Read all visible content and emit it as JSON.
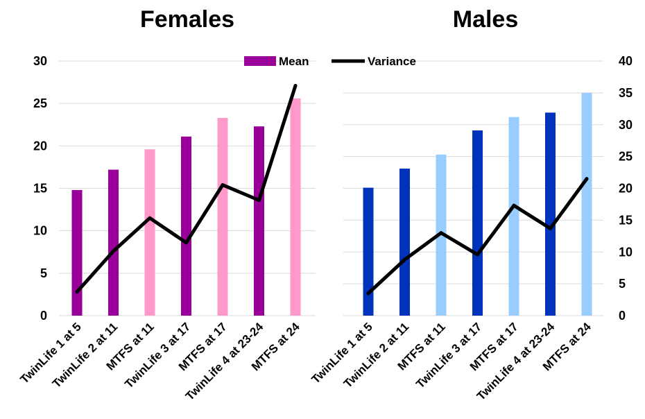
{
  "chart_data": [
    {
      "type": "bar",
      "title": "Females",
      "categories": [
        "TwinLife 1 at 5",
        "TwinLife 2 at 11",
        "MTFS at 11",
        "TwinLife 3 at 17",
        "MTFS at 17",
        "TwinLife 4 at 23-24",
        "MTFS at 24"
      ],
      "series": [
        {
          "name": "Mean",
          "kind": "bar",
          "axis": "left",
          "values": [
            14.8,
            17.2,
            19.6,
            21.1,
            23.3,
            22.3,
            25.6
          ],
          "colors": [
            "#990099",
            "#990099",
            "#ff99cc",
            "#990099",
            "#ff99cc",
            "#990099",
            "#ff99cc"
          ]
        },
        {
          "name": "Variance",
          "kind": "line",
          "axis": "left",
          "color": "#000000",
          "values": [
            2.8,
            7.6,
            11.5,
            8.6,
            15.4,
            13.6,
            27.1
          ]
        }
      ],
      "ylim": [
        0,
        30
      ],
      "yticks": [
        "0",
        "5",
        "10",
        "15",
        "20",
        "25",
        "30"
      ],
      "grid": true
    },
    {
      "type": "bar",
      "title": "Males",
      "categories": [
        "TwinLife 1 at 5",
        "TwinLife 2 at 11",
        "MTFS at 11",
        "TwinLife 3 at 17",
        "MTFS at 17",
        "TwinLife 4 at 23-24",
        "MTFS at 24"
      ],
      "series": [
        {
          "name": "Mean",
          "kind": "bar",
          "axis": "right",
          "values": [
            20.1,
            23.1,
            25.3,
            29.1,
            31.2,
            31.9,
            35.0
          ],
          "colors": [
            "#0033bb",
            "#0033bb",
            "#99ccff",
            "#0033bb",
            "#99ccff",
            "#0033bb",
            "#99ccff"
          ]
        },
        {
          "name": "Variance",
          "kind": "line",
          "axis": "right",
          "color": "#000000",
          "values": [
            3.5,
            8.8,
            13.0,
            9.6,
            17.3,
            13.7,
            21.5
          ]
        }
      ],
      "ylim": [
        0,
        40
      ],
      "yticks": [
        "0",
        "5",
        "10",
        "15",
        "20",
        "25",
        "30",
        "35",
        "40"
      ],
      "grid": true
    }
  ],
  "legend": {
    "placement": "top-center",
    "items": [
      {
        "label": "Mean",
        "swatch": "bar",
        "color": "#990099"
      },
      {
        "label": "Variance",
        "swatch": "line",
        "color": "#000000"
      }
    ]
  }
}
